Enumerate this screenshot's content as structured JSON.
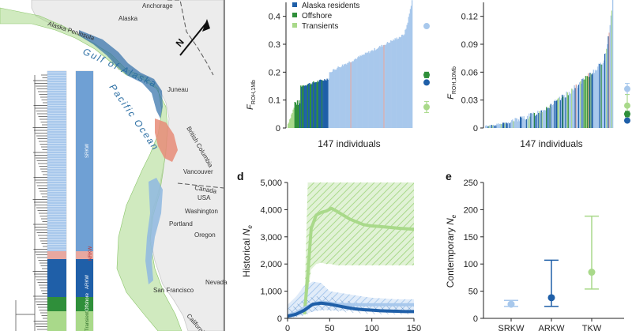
{
  "colors": {
    "southern_residents": "#a8c8ec",
    "alaska_residents": "#1f5fa8",
    "offshore": "#2f8f3a",
    "transients": "#a9d98a",
    "nrkw_pink": "#e8a8a0",
    "land": "#eeeeee",
    "water": "#ffffff"
  },
  "map": {
    "places": [
      "Anchorage",
      "Alaska",
      "Alaska Peninsula",
      "Juneau",
      "British Columbia",
      "Vancouver",
      "Canada",
      "USA",
      "Washington",
      "Portland",
      "Oregon",
      "Nevada",
      "San Francisco",
      "California"
    ],
    "seas": [
      "Gulf of Alaska",
      "Pacific Ocean"
    ],
    "north_label": "N",
    "ancestry_labels": [
      "SRKW",
      "NRKW",
      "ARKW",
      "Offshore",
      "Transient"
    ]
  },
  "legend": {
    "items": [
      {
        "label": "Alaska residents",
        "color": "#1f5fa8"
      },
      {
        "label": "Offshore",
        "color": "#2f8f3a"
      },
      {
        "label": "Transients",
        "color": "#a9d98a"
      }
    ]
  },
  "chart_data": [
    {
      "id": "b",
      "type": "bar",
      "ylabel": "F_ROH,1Mb",
      "xlabel": "147 individuals",
      "ylim": [
        0,
        0.45
      ],
      "yticks": [
        0,
        0.1,
        0.2,
        0.3,
        0.4
      ],
      "ytick_labels": [
        "0",
        "0.1",
        "0.2",
        "0.3",
        "0.4"
      ],
      "summary_points": [
        {
          "population": "Southern residents",
          "mean": 0.365,
          "lo": 0.36,
          "hi": 0.37
        },
        {
          "population": "Offshore",
          "mean": 0.19,
          "lo": 0.18,
          "hi": 0.2
        },
        {
          "population": "Alaska residents",
          "mean": 0.163,
          "lo": 0.158,
          "hi": 0.168
        },
        {
          "population": "Transients",
          "mean": 0.075,
          "lo": 0.055,
          "hi": 0.095
        }
      ]
    },
    {
      "id": "c",
      "type": "bar",
      "ylabel": "F_ROH,10Mb",
      "xlabel": "147 individuals",
      "ylim": [
        0,
        0.135
      ],
      "yticks": [
        0,
        0.03,
        0.06,
        0.09,
        0.12
      ],
      "ytick_labels": [
        "0",
        "0.03",
        "0.06",
        "0.09",
        "0.12"
      ],
      "summary_points": [
        {
          "population": "Southern residents",
          "mean": 0.042,
          "lo": 0.036,
          "hi": 0.048
        },
        {
          "population": "Transients",
          "mean": 0.024,
          "lo": 0.012,
          "hi": 0.036
        },
        {
          "population": "Offshore",
          "mean": 0.015,
          "lo": 0.012,
          "hi": 0.018
        },
        {
          "population": "Alaska residents",
          "mean": 0.008,
          "lo": 0.006,
          "hi": 0.01
        }
      ]
    },
    {
      "id": "d",
      "type": "line",
      "panel_label": "d",
      "ylabel": "Historical N_e",
      "ylim": [
        0,
        5000
      ],
      "yticks": [
        0,
        1000,
        2000,
        3000,
        4000,
        5000
      ],
      "ytick_labels": [
        "0",
        "1,000",
        "2,000",
        "3,000",
        "4,000",
        "5,000"
      ],
      "xlim": [
        0,
        150
      ],
      "xtick_labels": [
        "0",
        "50",
        "100",
        "150"
      ],
      "series": [
        {
          "name": "Transients",
          "x": [
            20,
            24,
            28,
            34,
            40,
            46,
            52,
            58,
            66,
            74,
            82,
            90,
            100,
            110,
            120,
            130,
            140,
            150
          ],
          "y": [
            150,
            1600,
            3300,
            3800,
            3900,
            3950,
            4050,
            3950,
            3800,
            3650,
            3550,
            3450,
            3400,
            3380,
            3350,
            3320,
            3300,
            3280
          ],
          "lo": [
            150,
            900,
            1800,
            2000,
            2050,
            2000,
            2000,
            1950,
            1950,
            1950,
            1950,
            1950,
            1950,
            1950,
            1950,
            1950,
            1950,
            1950
          ],
          "hi": [
            500,
            5000,
            5000,
            5000,
            5000,
            5000,
            5000,
            5000,
            5000,
            5000,
            5000,
            5000,
            5000,
            5000,
            5000,
            5000,
            5000,
            5000
          ]
        },
        {
          "name": "Southern residents",
          "x": [
            0,
            10,
            20,
            30,
            40,
            50,
            60,
            70,
            80,
            90,
            100,
            110,
            120,
            130,
            140,
            150
          ],
          "y": [
            100,
            200,
            380,
            520,
            600,
            560,
            520,
            510,
            500,
            500,
            500,
            500,
            500,
            500,
            500,
            500
          ],
          "lo": [
            0,
            50,
            150,
            250,
            300,
            300,
            280,
            280,
            280,
            280,
            280,
            280,
            280,
            280,
            280,
            280
          ],
          "hi": [
            500,
            800,
            1200,
            1350,
            1300,
            1000,
            950,
            900,
            850,
            800,
            760,
            740,
            720,
            700,
            700,
            700
          ]
        },
        {
          "name": "Alaska residents",
          "x": [
            0,
            10,
            20,
            30,
            40,
            50,
            60,
            70,
            80,
            90,
            100,
            110,
            120,
            130,
            140,
            150
          ],
          "y": [
            80,
            150,
            300,
            520,
            560,
            520,
            460,
            400,
            350,
            320,
            300,
            280,
            270,
            260,
            250,
            250
          ],
          "lo": [
            0,
            50,
            100,
            250,
            300,
            280,
            250,
            220,
            200,
            180,
            160,
            150,
            150,
            150,
            150,
            150
          ],
          "hi": [
            300,
            500,
            700,
            800,
            820,
            780,
            700,
            650,
            600,
            560,
            520,
            500,
            480,
            470,
            460,
            450
          ]
        }
      ]
    },
    {
      "id": "e",
      "type": "scatter",
      "panel_label": "e",
      "ylabel": "Contemporary N_e",
      "ylim": [
        0,
        250
      ],
      "yticks": [
        0,
        50,
        100,
        150,
        200,
        250
      ],
      "ytick_labels": [
        "0",
        "50",
        "100",
        "150",
        "200",
        "250"
      ],
      "categories": [
        "SRKW",
        "ARKW",
        "TKW"
      ],
      "points": [
        {
          "name": "SRKW",
          "mean": 26,
          "lo": 22,
          "hi": 33
        },
        {
          "name": "ARKW",
          "mean": 38,
          "lo": 22,
          "hi": 107
        },
        {
          "name": "TKW",
          "mean": 85,
          "lo": 54,
          "hi": 188
        }
      ]
    }
  ]
}
